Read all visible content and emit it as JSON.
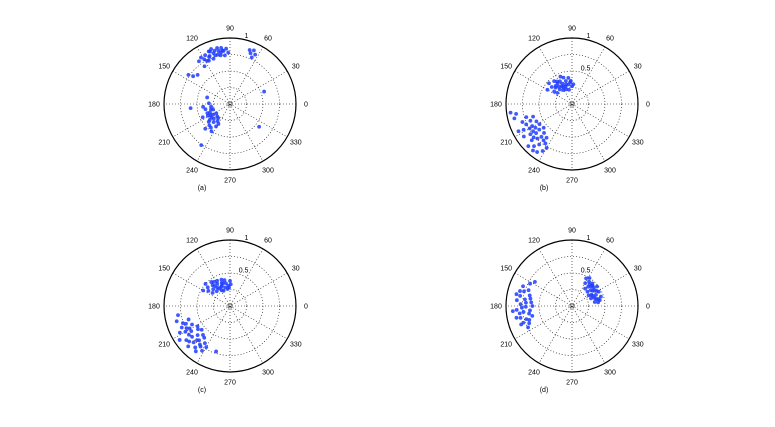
{
  "style": {
    "marker_color": "#1f3cff",
    "grid_color": "#000000",
    "background": "#ffffff"
  },
  "chart_data": [
    {
      "type": "scatter",
      "coordinate_system": "polar",
      "angle_units": "degrees",
      "angle_ticks": [
        "0",
        "30",
        "60",
        "90",
        "120",
        "150",
        "180",
        "210",
        "240",
        "270",
        "300",
        "330"
      ],
      "radial_ticks": [
        {
          "r": 1,
          "label": "1"
        }
      ],
      "rlim": [
        0,
        1
      ],
      "grid": true,
      "caption": "(a)",
      "points": [
        {
          "theta": 120,
          "r": 0.78
        },
        {
          "theta": 117,
          "r": 0.83
        },
        {
          "theta": 114,
          "r": 0.78
        },
        {
          "theta": 112,
          "r": 0.86
        },
        {
          "theta": 110,
          "r": 0.73
        },
        {
          "theta": 108,
          "r": 0.81
        },
        {
          "theta": 106,
          "r": 0.84
        },
        {
          "theta": 104,
          "r": 0.77
        },
        {
          "theta": 102,
          "r": 0.82
        },
        {
          "theta": 100,
          "r": 0.79
        },
        {
          "theta": 99,
          "r": 0.86
        },
        {
          "theta": 97,
          "r": 0.81
        },
        {
          "theta": 96,
          "r": 0.74
        },
        {
          "theta": 94,
          "r": 0.84
        },
        {
          "theta": 124,
          "r": 0.69
        },
        {
          "theta": 118,
          "r": 0.74
        },
        {
          "theta": 111,
          "r": 0.85
        },
        {
          "theta": 107,
          "r": 0.77
        },
        {
          "theta": 98,
          "r": 0.82
        },
        {
          "theta": 122,
          "r": 0.83
        },
        {
          "theta": 116,
          "r": 0.73
        },
        {
          "theta": 103,
          "r": 0.87
        },
        {
          "theta": 92,
          "r": 0.78
        },
        {
          "theta": 126,
          "r": 0.8
        },
        {
          "theta": 113,
          "r": 0.79
        },
        {
          "theta": 101,
          "r": 0.75
        },
        {
          "theta": 138,
          "r": 0.66
        },
        {
          "theta": 143,
          "r": 0.7
        },
        {
          "theta": 145,
          "r": 0.77
        },
        {
          "theta": 109,
          "r": 0.88
        },
        {
          "theta": 68,
          "r": 0.83
        },
        {
          "theta": 65,
          "r": 0.78
        },
        {
          "theta": 70,
          "r": 0.87
        },
        {
          "theta": 63,
          "r": 0.84
        },
        {
          "theta": 66,
          "r": 0.89
        },
        {
          "theta": 20,
          "r": 0.55
        },
        {
          "theta": 164,
          "r": 0.36
        },
        {
          "theta": 178,
          "r": 0.32
        },
        {
          "theta": 188,
          "r": 0.29
        },
        {
          "theta": 198,
          "r": 0.27
        },
        {
          "theta": 203,
          "r": 0.33
        },
        {
          "theta": 208,
          "r": 0.38
        },
        {
          "theta": 212,
          "r": 0.3
        },
        {
          "theta": 216,
          "r": 0.35
        },
        {
          "theta": 220,
          "r": 0.42
        },
        {
          "theta": 224,
          "r": 0.27
        },
        {
          "theta": 228,
          "r": 0.37
        },
        {
          "theta": 231,
          "r": 0.46
        },
        {
          "theta": 234,
          "r": 0.32
        },
        {
          "theta": 238,
          "r": 0.4
        },
        {
          "theta": 192,
          "r": 0.38
        },
        {
          "theta": 206,
          "r": 0.46
        },
        {
          "theta": 214,
          "r": 0.25
        },
        {
          "theta": 222,
          "r": 0.33
        },
        {
          "theta": 226,
          "r": 0.45
        },
        {
          "theta": 196,
          "r": 0.3
        },
        {
          "theta": 218,
          "r": 0.39
        },
        {
          "theta": 230,
          "r": 0.28
        },
        {
          "theta": 210,
          "r": 0.34
        },
        {
          "theta": 240,
          "r": 0.35
        },
        {
          "theta": 236,
          "r": 0.5
        },
        {
          "theta": 186,
          "r": 0.41
        },
        {
          "theta": 202,
          "r": 0.37
        },
        {
          "theta": 225,
          "r": 0.53
        },
        {
          "theta": 186,
          "r": 0.6
        },
        {
          "theta": 322,
          "r": 0.56
        },
        {
          "theta": 235,
          "r": 0.76
        }
      ]
    },
    {
      "type": "scatter",
      "coordinate_system": "polar",
      "angle_units": "degrees",
      "angle_ticks": [
        "0",
        "30",
        "60",
        "90",
        "120",
        "150",
        "180",
        "210",
        "240",
        "270",
        "300",
        "330"
      ],
      "radial_ticks": [
        {
          "r": 0.5,
          "label": "0.5"
        },
        {
          "r": 1,
          "label": "1"
        }
      ],
      "rlim": [
        0,
        1
      ],
      "grid": true,
      "caption": "(b)",
      "points": [
        {
          "theta": 95,
          "r": 0.33
        },
        {
          "theta": 100,
          "r": 0.3
        },
        {
          "theta": 105,
          "r": 0.36
        },
        {
          "theta": 110,
          "r": 0.28
        },
        {
          "theta": 115,
          "r": 0.34
        },
        {
          "theta": 120,
          "r": 0.31
        },
        {
          "theta": 125,
          "r": 0.38
        },
        {
          "theta": 130,
          "r": 0.29
        },
        {
          "theta": 135,
          "r": 0.35
        },
        {
          "theta": 140,
          "r": 0.4
        },
        {
          "theta": 145,
          "r": 0.33
        },
        {
          "theta": 150,
          "r": 0.43
        },
        {
          "theta": 90,
          "r": 0.27
        },
        {
          "theta": 98,
          "r": 0.4
        },
        {
          "theta": 108,
          "r": 0.42
        },
        {
          "theta": 118,
          "r": 0.39
        },
        {
          "theta": 128,
          "r": 0.44
        },
        {
          "theta": 112,
          "r": 0.24
        },
        {
          "theta": 102,
          "r": 0.22
        },
        {
          "theta": 122,
          "r": 0.25
        },
        {
          "theta": 132,
          "r": 0.37
        },
        {
          "theta": 138,
          "r": 0.47
        },
        {
          "theta": 93,
          "r": 0.35
        },
        {
          "theta": 107,
          "r": 0.31
        },
        {
          "theta": 117,
          "r": 0.29
        },
        {
          "theta": 127,
          "r": 0.33
        },
        {
          "theta": 143,
          "r": 0.28
        },
        {
          "theta": 86,
          "r": 0.3
        },
        {
          "theta": 113,
          "r": 0.45
        },
        {
          "theta": 124,
          "r": 0.41
        },
        {
          "theta": 198,
          "r": 0.62
        },
        {
          "theta": 202,
          "r": 0.68
        },
        {
          "theta": 206,
          "r": 0.6
        },
        {
          "theta": 210,
          "r": 0.74
        },
        {
          "theta": 213,
          "r": 0.66
        },
        {
          "theta": 216,
          "r": 0.78
        },
        {
          "theta": 219,
          "r": 0.7
        },
        {
          "theta": 222,
          "r": 0.82
        },
        {
          "theta": 225,
          "r": 0.74
        },
        {
          "theta": 228,
          "r": 0.86
        },
        {
          "theta": 231,
          "r": 0.79
        },
        {
          "theta": 234,
          "r": 0.9
        },
        {
          "theta": 236,
          "r": 0.72
        },
        {
          "theta": 238,
          "r": 0.84
        },
        {
          "theta": 240,
          "r": 0.77
        },
        {
          "theta": 204,
          "r": 0.76
        },
        {
          "theta": 208,
          "r": 0.83
        },
        {
          "theta": 212,
          "r": 0.58
        },
        {
          "theta": 218,
          "r": 0.63
        },
        {
          "theta": 224,
          "r": 0.92
        },
        {
          "theta": 227,
          "r": 0.68
        },
        {
          "theta": 230,
          "r": 0.92
        },
        {
          "theta": 233,
          "r": 0.64
        },
        {
          "theta": 200,
          "r": 0.8
        },
        {
          "theta": 196,
          "r": 0.72
        },
        {
          "theta": 214,
          "r": 0.88
        },
        {
          "theta": 220,
          "r": 0.56
        },
        {
          "theta": 226,
          "r": 0.61
        },
        {
          "theta": 232,
          "r": 0.7
        },
        {
          "theta": 215,
          "r": 0.72
        },
        {
          "theta": 221,
          "r": 0.77
        },
        {
          "theta": 209,
          "r": 0.69
        },
        {
          "theta": 207,
          "r": 0.91
        },
        {
          "theta": 190,
          "r": 0.86
        },
        {
          "theta": 188,
          "r": 0.94
        },
        {
          "theta": 194,
          "r": 0.9
        }
      ]
    },
    {
      "type": "scatter",
      "coordinate_system": "polar",
      "angle_units": "degrees",
      "angle_ticks": [
        "0",
        "30",
        "60",
        "90",
        "120",
        "150",
        "180",
        "210",
        "240",
        "270",
        "300",
        "330"
      ],
      "radial_ticks": [
        {
          "r": 0.5,
          "label": "0.5"
        },
        {
          "r": 1,
          "label": "1"
        }
      ],
      "rlim": [
        0,
        1
      ],
      "grid": true,
      "caption": "(c)",
      "points": [
        {
          "theta": 95,
          "r": 0.31
        },
        {
          "theta": 100,
          "r": 0.35
        },
        {
          "theta": 105,
          "r": 0.29
        },
        {
          "theta": 110,
          "r": 0.37
        },
        {
          "theta": 115,
          "r": 0.32
        },
        {
          "theta": 120,
          "r": 0.39
        },
        {
          "theta": 125,
          "r": 0.34
        },
        {
          "theta": 130,
          "r": 0.41
        },
        {
          "theta": 135,
          "r": 0.36
        },
        {
          "theta": 140,
          "r": 0.44
        },
        {
          "theta": 145,
          "r": 0.4
        },
        {
          "theta": 150,
          "r": 0.47
        },
        {
          "theta": 90,
          "r": 0.38
        },
        {
          "theta": 98,
          "r": 0.26
        },
        {
          "theta": 108,
          "r": 0.42
        },
        {
          "theta": 118,
          "r": 0.27
        },
        {
          "theta": 128,
          "r": 0.46
        },
        {
          "theta": 112,
          "r": 0.33
        },
        {
          "theta": 102,
          "r": 0.4
        },
        {
          "theta": 122,
          "r": 0.31
        },
        {
          "theta": 132,
          "r": 0.3
        },
        {
          "theta": 138,
          "r": 0.5
        },
        {
          "theta": 93,
          "r": 0.28
        },
        {
          "theta": 107,
          "r": 0.36
        },
        {
          "theta": 117,
          "r": 0.43
        },
        {
          "theta": 127,
          "r": 0.38
        },
        {
          "theta": 143,
          "r": 0.33
        },
        {
          "theta": 88,
          "r": 0.33
        },
        {
          "theta": 113,
          "r": 0.25
        },
        {
          "theta": 124,
          "r": 0.44
        },
        {
          "theta": 198,
          "r": 0.66
        },
        {
          "theta": 202,
          "r": 0.72
        },
        {
          "theta": 206,
          "r": 0.64
        },
        {
          "theta": 210,
          "r": 0.78
        },
        {
          "theta": 213,
          "r": 0.7
        },
        {
          "theta": 216,
          "r": 0.6
        },
        {
          "theta": 219,
          "r": 0.74
        },
        {
          "theta": 222,
          "r": 0.66
        },
        {
          "theta": 225,
          "r": 0.78
        },
        {
          "theta": 228,
          "r": 0.7
        },
        {
          "theta": 231,
          "r": 0.62
        },
        {
          "theta": 234,
          "r": 0.76
        },
        {
          "theta": 236,
          "r": 0.68
        },
        {
          "theta": 238,
          "r": 0.8
        },
        {
          "theta": 240,
          "r": 0.72
        },
        {
          "theta": 204,
          "r": 0.8
        },
        {
          "theta": 208,
          "r": 0.86
        },
        {
          "theta": 212,
          "r": 0.58
        },
        {
          "theta": 218,
          "r": 0.84
        },
        {
          "theta": 224,
          "r": 0.88
        },
        {
          "theta": 227,
          "r": 0.6
        },
        {
          "theta": 230,
          "r": 0.82
        },
        {
          "theta": 233,
          "r": 0.86
        },
        {
          "theta": 200,
          "r": 0.76
        },
        {
          "theta": 196,
          "r": 0.84
        },
        {
          "theta": 214,
          "r": 0.92
        },
        {
          "theta": 220,
          "r": 0.56
        },
        {
          "theta": 226,
          "r": 0.72
        },
        {
          "theta": 232,
          "r": 0.74
        },
        {
          "theta": 215,
          "r": 0.76
        },
        {
          "theta": 221,
          "r": 0.82
        },
        {
          "theta": 209,
          "r": 0.7
        },
        {
          "theta": 207,
          "r": 0.74
        },
        {
          "theta": 190,
          "r": 0.8
        },
        {
          "theta": 253,
          "r": 0.72
        }
      ]
    },
    {
      "type": "scatter",
      "coordinate_system": "polar",
      "angle_units": "degrees",
      "angle_ticks": [
        "0",
        "30",
        "60",
        "90",
        "120",
        "150",
        "180",
        "210",
        "240",
        "270",
        "300",
        "330"
      ],
      "radial_ticks": [
        {
          "r": 0.5,
          "label": "0.5"
        },
        {
          "r": 1,
          "label": "1"
        }
      ],
      "rlim": [
        0,
        1
      ],
      "grid": true,
      "caption": "(d)",
      "points": [
        {
          "theta": 20,
          "r": 0.36
        },
        {
          "theta": 25,
          "r": 0.4
        },
        {
          "theta": 30,
          "r": 0.34
        },
        {
          "theta": 35,
          "r": 0.42
        },
        {
          "theta": 40,
          "r": 0.37
        },
        {
          "theta": 45,
          "r": 0.44
        },
        {
          "theta": 50,
          "r": 0.38
        },
        {
          "theta": 55,
          "r": 0.45
        },
        {
          "theta": 60,
          "r": 0.4
        },
        {
          "theta": 15,
          "r": 0.41
        },
        {
          "theta": 10,
          "r": 0.35
        },
        {
          "theta": 28,
          "r": 0.46
        },
        {
          "theta": 33,
          "r": 0.3
        },
        {
          "theta": 38,
          "r": 0.48
        },
        {
          "theta": 43,
          "r": 0.32
        },
        {
          "theta": 48,
          "r": 0.46
        },
        {
          "theta": 53,
          "r": 0.33
        },
        {
          "theta": 58,
          "r": 0.5
        },
        {
          "theta": 22,
          "r": 0.31
        },
        {
          "theta": 18,
          "r": 0.46
        },
        {
          "theta": 12,
          "r": 0.43
        },
        {
          "theta": 26,
          "r": 0.35
        },
        {
          "theta": 36,
          "r": 0.39
        },
        {
          "theta": 46,
          "r": 0.41
        },
        {
          "theta": 31,
          "r": 0.44
        },
        {
          "theta": 41,
          "r": 0.43
        },
        {
          "theta": 63,
          "r": 0.47
        },
        {
          "theta": 8,
          "r": 0.4
        },
        {
          "theta": 16,
          "r": 0.38
        },
        {
          "theta": 51,
          "r": 0.42
        },
        {
          "theta": 160,
          "r": 0.7
        },
        {
          "theta": 163,
          "r": 0.76
        },
        {
          "theta": 166,
          "r": 0.66
        },
        {
          "theta": 169,
          "r": 0.8
        },
        {
          "theta": 172,
          "r": 0.72
        },
        {
          "theta": 175,
          "r": 0.62
        },
        {
          "theta": 178,
          "r": 0.78
        },
        {
          "theta": 181,
          "r": 0.7
        },
        {
          "theta": 184,
          "r": 0.84
        },
        {
          "theta": 187,
          "r": 0.74
        },
        {
          "theta": 190,
          "r": 0.66
        },
        {
          "theta": 193,
          "r": 0.8
        },
        {
          "theta": 196,
          "r": 0.72
        },
        {
          "theta": 199,
          "r": 0.78
        },
        {
          "theta": 202,
          "r": 0.7
        },
        {
          "theta": 168,
          "r": 0.86
        },
        {
          "theta": 174,
          "r": 0.84
        },
        {
          "theta": 180,
          "r": 0.6
        },
        {
          "theta": 186,
          "r": 0.64
        },
        {
          "theta": 192,
          "r": 0.86
        },
        {
          "theta": 198,
          "r": 0.68
        },
        {
          "theta": 176,
          "r": 0.7
        },
        {
          "theta": 182,
          "r": 0.76
        },
        {
          "theta": 188,
          "r": 0.8
        },
        {
          "theta": 194,
          "r": 0.62
        },
        {
          "theta": 170,
          "r": 0.64
        },
        {
          "theta": 164,
          "r": 0.82
        },
        {
          "theta": 200,
          "r": 0.82
        },
        {
          "theta": 206,
          "r": 0.74
        },
        {
          "theta": 158,
          "r": 0.8
        },
        {
          "theta": 152,
          "r": 0.72
        },
        {
          "theta": 147,
          "r": 0.67
        },
        {
          "theta": 185,
          "r": 0.9
        }
      ]
    }
  ]
}
